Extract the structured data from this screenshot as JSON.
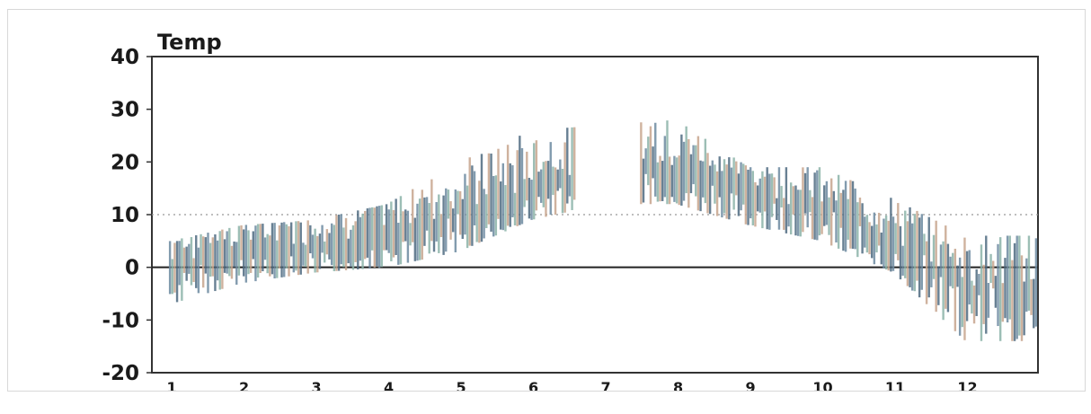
{
  "chart_data": {
    "type": "bar",
    "chart_style": "daily temperature range bars (min to max) by day of year",
    "title": "",
    "ylabel": "Temp",
    "xlabel": "",
    "ylim": [
      -20,
      40
    ],
    "y_ticks": [
      40,
      30,
      20,
      10,
      0,
      -10,
      -20
    ],
    "x_ticks": [
      {
        "label": "1",
        "month": 1
      },
      {
        "label": "2",
        "month": 2
      },
      {
        "label": "3",
        "month": 3
      },
      {
        "label": "4",
        "month": 4
      },
      {
        "label": "5",
        "month": 5
      },
      {
        "label": "6",
        "month": 6
      },
      {
        "label": "7",
        "month": 7
      },
      {
        "label": "8",
        "month": 8
      },
      {
        "label": "9",
        "month": 9
      },
      {
        "label": "10",
        "month": 10
      },
      {
        "label": "11",
        "month": 11
      },
      {
        "label": "12",
        "month": 12
      }
    ],
    "reference_lines": [
      {
        "y": 0,
        "style": "solid"
      },
      {
        "y": 10,
        "style": "dotted"
      }
    ],
    "grid": false,
    "legend": "none",
    "colors": {
      "bars": [
        "#6c8aa0",
        "#8bb3a8",
        "#c7a58d",
        "#4e6a80"
      ],
      "axis": "#333333",
      "zero_line": "#222222",
      "dotted_line": "#999999"
    },
    "series": [
      {
        "name": "",
        "envelope_months": [
          1,
          2,
          3,
          4,
          5,
          6,
          7,
          8,
          9,
          10,
          11,
          12
        ],
        "monthly_low": [
          -7,
          -3,
          -1,
          0,
          3,
          9,
          12,
          12,
          8,
          5,
          -1,
          -14
        ],
        "monthly_high": [
          5,
          8,
          9,
          12,
          20,
          26,
          27,
          28,
          19,
          19,
          13,
          6
        ],
        "monthly_mean": [
          0,
          3,
          4,
          6,
          10,
          15,
          20,
          19,
          14,
          11,
          5,
          -4
        ]
      }
    ],
    "missing_periods": [
      {
        "from_month": 6.6,
        "to_month": 7.5
      }
    ]
  }
}
